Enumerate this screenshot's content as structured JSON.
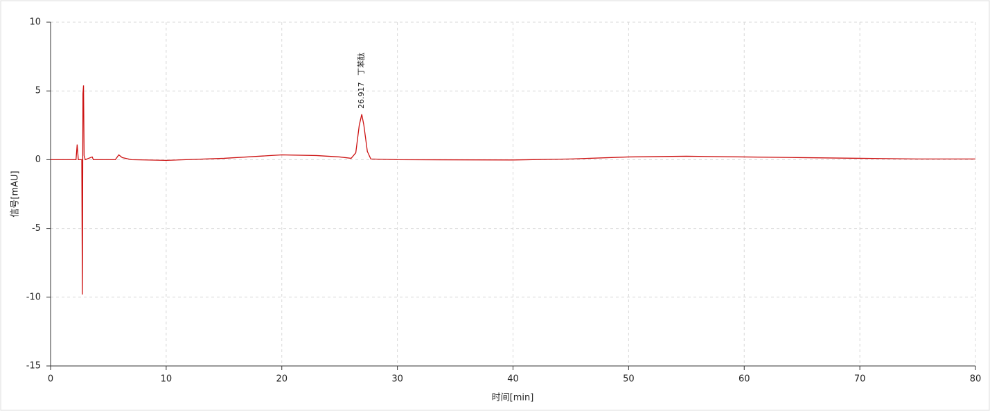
{
  "chart_data": {
    "type": "line",
    "x_label": "时间[min]",
    "y_label": "信号[mAU]",
    "x": [
      0,
      2.2,
      2.3,
      2.4,
      2.7,
      2.75,
      2.8,
      2.85,
      2.9,
      3.0,
      3.6,
      3.7,
      5.6,
      5.9,
      6.2,
      7,
      10,
      15,
      20,
      23,
      25,
      26,
      26.4,
      26.7,
      26.917,
      27.1,
      27.4,
      27.7,
      30,
      40,
      45,
      50,
      55,
      60,
      65,
      70,
      75,
      80
    ],
    "series": [
      {
        "name": "信号",
        "color": "#cc1111",
        "values": [
          0,
          0,
          1.1,
          0,
          0,
          -9.8,
          4.8,
          5.4,
          0.3,
          0,
          0.2,
          0,
          0,
          0.35,
          0.15,
          0,
          -0.05,
          0.1,
          0.35,
          0.3,
          0.2,
          0.1,
          0.5,
          2.5,
          3.3,
          2.5,
          0.6,
          0.05,
          0,
          -0.02,
          0.05,
          0.2,
          0.25,
          0.2,
          0.15,
          0.1,
          0.05,
          0.05
        ]
      }
    ],
    "peaks": [
      {
        "time": 26.917,
        "name": "丁苯酞"
      }
    ],
    "xlim": [
      0,
      80
    ],
    "xticks": [
      0,
      10,
      20,
      30,
      40,
      50,
      60,
      70,
      80
    ],
    "ylim": [
      -15,
      10
    ],
    "yticks": [
      -15,
      -10,
      -5,
      0,
      5,
      10
    ],
    "grid": true
  }
}
